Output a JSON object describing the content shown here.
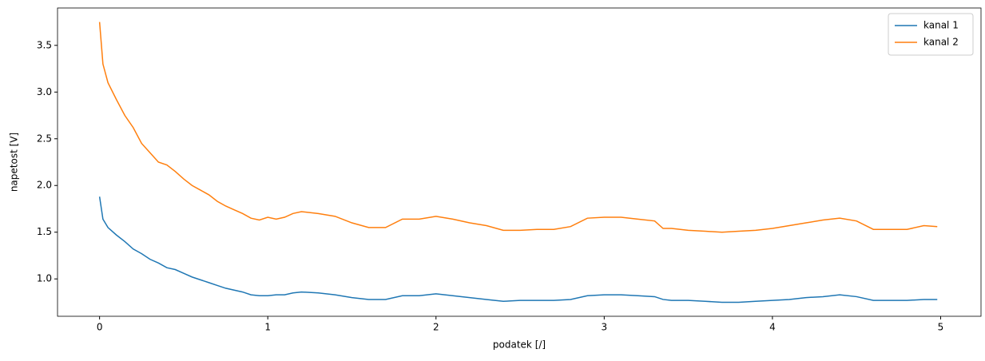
{
  "chart_data": {
    "type": "line",
    "xlabel": "podatek [/]",
    "ylabel": "napetost [V]",
    "x": [
      0,
      0.02,
      0.05,
      0.1,
      0.15,
      0.2,
      0.25,
      0.3,
      0.35,
      0.4,
      0.45,
      0.5,
      0.55,
      0.6,
      0.65,
      0.7,
      0.75,
      0.8,
      0.85,
      0.9,
      0.95,
      1.0,
      1.05,
      1.1,
      1.15,
      1.2,
      1.3,
      1.4,
      1.5,
      1.6,
      1.7,
      1.8,
      1.9,
      2.0,
      2.1,
      2.2,
      2.3,
      2.4,
      2.5,
      2.6,
      2.7,
      2.8,
      2.9,
      3.0,
      3.1,
      3.2,
      3.3,
      3.35,
      3.4,
      3.5,
      3.6,
      3.7,
      3.8,
      3.9,
      4.0,
      4.1,
      4.2,
      4.3,
      4.4,
      4.5,
      4.6,
      4.7,
      4.8,
      4.9,
      4.98
    ],
    "series": [
      {
        "name": "kanal 1",
        "color": "#1f77b4",
        "values": [
          1.88,
          1.64,
          1.55,
          1.47,
          1.4,
          1.32,
          1.27,
          1.21,
          1.17,
          1.12,
          1.1,
          1.06,
          1.02,
          0.99,
          0.96,
          0.93,
          0.9,
          0.88,
          0.86,
          0.83,
          0.82,
          0.82,
          0.83,
          0.83,
          0.85,
          0.86,
          0.85,
          0.83,
          0.8,
          0.78,
          0.78,
          0.82,
          0.82,
          0.84,
          0.82,
          0.8,
          0.78,
          0.76,
          0.77,
          0.77,
          0.77,
          0.78,
          0.82,
          0.83,
          0.83,
          0.82,
          0.81,
          0.78,
          0.77,
          0.77,
          0.76,
          0.75,
          0.75,
          0.76,
          0.77,
          0.78,
          0.8,
          0.81,
          0.83,
          0.81,
          0.77,
          0.77,
          0.77,
          0.78,
          0.78
        ]
      },
      {
        "name": "kanal 2",
        "color": "#ff7f0e",
        "values": [
          3.75,
          3.3,
          3.1,
          2.92,
          2.75,
          2.62,
          2.45,
          2.35,
          2.25,
          2.22,
          2.15,
          2.07,
          2.0,
          1.95,
          1.9,
          1.83,
          1.78,
          1.74,
          1.7,
          1.65,
          1.63,
          1.66,
          1.64,
          1.66,
          1.7,
          1.72,
          1.7,
          1.67,
          1.6,
          1.55,
          1.55,
          1.64,
          1.64,
          1.67,
          1.64,
          1.6,
          1.57,
          1.52,
          1.52,
          1.53,
          1.53,
          1.56,
          1.65,
          1.66,
          1.66,
          1.64,
          1.62,
          1.54,
          1.54,
          1.52,
          1.51,
          1.5,
          1.51,
          1.52,
          1.54,
          1.57,
          1.6,
          1.63,
          1.65,
          1.62,
          1.53,
          1.53,
          1.53,
          1.57,
          1.56
        ]
      }
    ],
    "xlim": [
      -0.25,
      5.24
    ],
    "ylim": [
      0.6,
      3.9
    ],
    "xticks": [
      0,
      1,
      2,
      3,
      4,
      5
    ],
    "yticks": [
      {
        "value": 1,
        "label": "1.0"
      },
      1.5,
      {
        "value": 2,
        "label": "2.0"
      },
      2.5,
      {
        "value": 3,
        "label": "3.0"
      },
      3.5
    ],
    "legend": "upper right"
  }
}
